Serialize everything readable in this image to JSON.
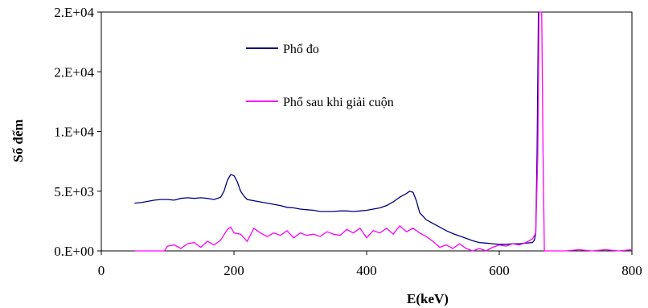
{
  "chart_data": {
    "type": "line",
    "title": "",
    "xlabel": "E(keV)",
    "ylabel": "Số đếm",
    "xlim": [
      0,
      800
    ],
    "ylim": [
      0,
      20000
    ],
    "x_ticks": [
      0,
      200,
      400,
      600,
      800
    ],
    "x_tick_labels": [
      "0",
      "200",
      "400",
      "600",
      "800"
    ],
    "y_ticks": [
      0,
      5000,
      10000,
      15000,
      20000
    ],
    "y_tick_labels": [
      "0.E+00",
      "5.E+03",
      "1.E+04",
      "2.E+04",
      "2.E+04"
    ],
    "grid": false,
    "legend_position": "upper-center",
    "series": [
      {
        "name": "Phổ đo",
        "color": "#000080",
        "x": [
          50,
          60,
          70,
          80,
          90,
          100,
          110,
          120,
          130,
          140,
          150,
          160,
          170,
          180,
          185,
          190,
          195,
          200,
          205,
          210,
          215,
          220,
          230,
          240,
          250,
          260,
          270,
          280,
          290,
          300,
          310,
          320,
          330,
          340,
          350,
          360,
          370,
          380,
          390,
          400,
          410,
          420,
          430,
          440,
          450,
          455,
          460,
          465,
          470,
          475,
          480,
          490,
          500,
          510,
          520,
          530,
          540,
          550,
          560,
          570,
          580,
          590,
          600,
          610,
          620,
          630,
          640,
          650,
          653,
          655,
          657,
          659,
          660,
          661
        ],
        "y": [
          4000,
          4050,
          4150,
          4250,
          4300,
          4300,
          4250,
          4400,
          4450,
          4400,
          4450,
          4400,
          4300,
          4500,
          5000,
          5900,
          6400,
          6300,
          5800,
          5000,
          4600,
          4300,
          4200,
          4100,
          4000,
          3900,
          3800,
          3650,
          3600,
          3500,
          3450,
          3400,
          3300,
          3300,
          3300,
          3350,
          3350,
          3300,
          3350,
          3400,
          3500,
          3600,
          3800,
          4100,
          4500,
          4650,
          4800,
          5000,
          4900,
          4200,
          3200,
          2600,
          2300,
          2000,
          1700,
          1450,
          1250,
          1050,
          850,
          700,
          650,
          600,
          550,
          550,
          600,
          600,
          650,
          700,
          900,
          1500,
          8000,
          20000,
          20000,
          20000
        ]
      },
      {
        "name": "Phổ sau khi giải cuộn",
        "color": "#ff00ff",
        "x": [
          50,
          60,
          70,
          80,
          90,
          95,
          100,
          110,
          120,
          130,
          140,
          150,
          160,
          170,
          180,
          190,
          195,
          200,
          210,
          220,
          230,
          240,
          250,
          260,
          270,
          280,
          290,
          300,
          310,
          320,
          330,
          340,
          350,
          360,
          370,
          380,
          390,
          400,
          410,
          420,
          430,
          440,
          450,
          460,
          470,
          480,
          490,
          500,
          510,
          520,
          530,
          540,
          550,
          560,
          570,
          580,
          590,
          600,
          610,
          620,
          630,
          640,
          650,
          655,
          658,
          660,
          662,
          664,
          666,
          668,
          670,
          680,
          700,
          720,
          740,
          760,
          780,
          800
        ],
        "y": [
          0,
          0,
          0,
          0,
          0,
          0,
          400,
          500,
          200,
          600,
          700,
          300,
          800,
          500,
          900,
          1800,
          2000,
          1500,
          1400,
          800,
          1900,
          1500,
          1200,
          1500,
          1300,
          1700,
          1100,
          1500,
          1300,
          1400,
          1200,
          1600,
          1400,
          1300,
          1800,
          1500,
          1900,
          1100,
          1700,
          1500,
          1900,
          1400,
          2100,
          1600,
          1900,
          1500,
          1200,
          800,
          300,
          500,
          200,
          600,
          200,
          0,
          200,
          0,
          300,
          500,
          400,
          600,
          500,
          700,
          1000,
          1500,
          8000,
          20000,
          20000,
          20000,
          8000,
          0,
          0,
          0,
          0,
          100,
          0,
          100,
          0,
          100
        ]
      }
    ]
  }
}
